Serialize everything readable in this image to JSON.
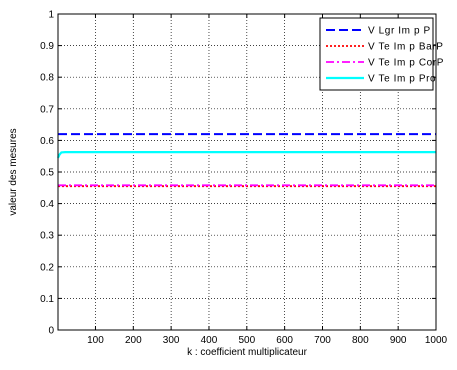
{
  "chart_data": {
    "type": "line",
    "title": "",
    "xlabel": "k : coefficient multiplicateur",
    "ylabel": "valeur des mesures",
    "xlim": [
      1,
      1000
    ],
    "ylim": [
      0,
      1
    ],
    "xticks": [
      100,
      200,
      300,
      400,
      500,
      600,
      700,
      800,
      900,
      1000
    ],
    "xtick_labels": [
      "100",
      "200",
      "300",
      "400",
      "500",
      "600",
      "700",
      "800",
      "900",
      "1000"
    ],
    "yticks": [
      0,
      0.1,
      0.2,
      0.3,
      0.4,
      0.5,
      0.6,
      0.7,
      0.8,
      0.9,
      1
    ],
    "ytick_labels": [
      "0",
      "0.1",
      "0.2",
      "0.3",
      "0.4",
      "0.5",
      "0.6",
      "0.7",
      "0.8",
      "0.9",
      "1"
    ],
    "grid": true,
    "legend_position": "top-right",
    "series": [
      {
        "name": "VLgrImpP",
        "legend_label": "V Lgr Im p P",
        "color": "#0000ff",
        "style": "dashed",
        "x": [
          1,
          1000
        ],
        "y": [
          0.62,
          0.62
        ]
      },
      {
        "name": "VTeImpBarP",
        "legend_label": "V Te Im p BarP",
        "color": "#ff0000",
        "style": "dotted",
        "x": [
          1,
          1000
        ],
        "y": [
          0.455,
          0.455
        ]
      },
      {
        "name": "VTeImpCorP",
        "legend_label": "V Te Im p CorP",
        "color": "#ff00ff",
        "style": "dashdot",
        "x": [
          1,
          1000
        ],
        "y": [
          0.458,
          0.458
        ]
      },
      {
        "name": "VTeImpPro",
        "legend_label": "V Te Im p Pro",
        "color": "#00ffff",
        "style": "solid",
        "x": [
          1,
          5,
          10,
          20,
          1000
        ],
        "y": [
          0.545,
          0.555,
          0.562,
          0.563,
          0.563
        ]
      }
    ]
  }
}
